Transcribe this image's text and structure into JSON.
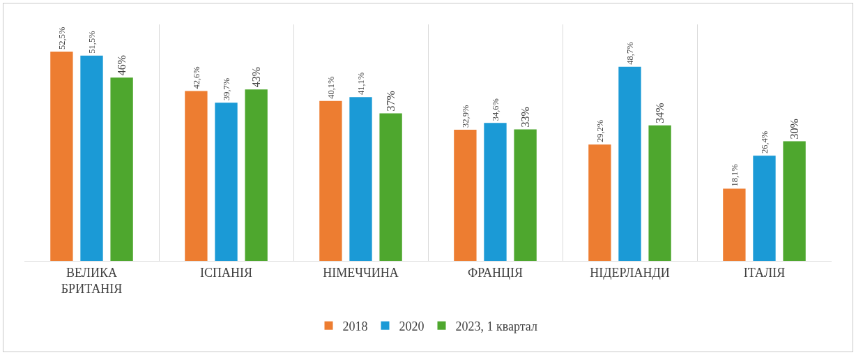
{
  "chart_data": {
    "type": "bar",
    "categories": [
      "ВЕЛИКА БРИТАНІЯ",
      "ІСПАНІЯ",
      "НІМЕЧЧИНА",
      "ФРАНЦІЯ",
      "НІДЕРЛАНДИ",
      "ІТАЛІЯ"
    ],
    "series": [
      {
        "name": "2018",
        "color": "#ed7d31",
        "values": [
          52.5,
          42.6,
          40.1,
          32.9,
          29.2,
          18.1
        ],
        "value_labels": [
          "52,5%",
          "42,6%",
          "40,1%",
          "32,9%",
          "29,2%",
          "18,1%"
        ]
      },
      {
        "name": "2020",
        "color": "#1b9ad6",
        "values": [
          51.5,
          39.7,
          41.1,
          34.6,
          48.7,
          26.4
        ],
        "value_labels": [
          "51,5%",
          "39,7%",
          "41,1%",
          "34,6%",
          "48,7%",
          "26,4%"
        ]
      },
      {
        "name": "2023, 1 квартал",
        "color": "#4ea72e",
        "values": [
          46,
          43,
          37,
          33,
          34,
          30
        ],
        "value_labels": [
          "46%",
          "43%",
          "37%",
          "33%",
          "34%",
          "30%"
        ]
      }
    ],
    "grid": "x",
    "legend": "bottom"
  }
}
